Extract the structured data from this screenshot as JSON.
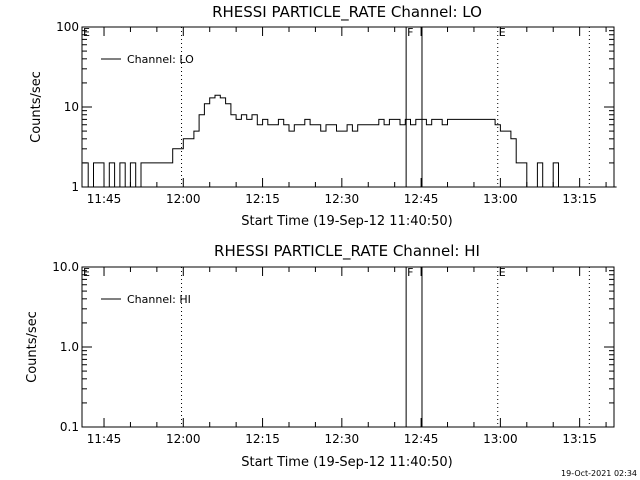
{
  "timestamp": "19-Oct-2021 02:34",
  "chart_data": [
    {
      "type": "line",
      "title": "RHESSI PARTICLE_RATE Channel: LO",
      "xlabel": "Start Time (19-Sep-12 11:40:50)",
      "ylabel": "Counts/sec",
      "yscale": "log",
      "xlim": [
        "11:40:50",
        "13:21:30"
      ],
      "ylim": [
        1,
        100
      ],
      "xticks": [
        "11:45",
        "12:00",
        "12:15",
        "12:30",
        "12:45",
        "13:00",
        "13:15"
      ],
      "yticks": [
        "1",
        "10",
        "100"
      ],
      "legend": {
        "label": "Channel: LO",
        "position": "top-left"
      },
      "markers": [
        {
          "label": "E",
          "time": "11:40:50",
          "style": "dotted"
        },
        {
          "label": "",
          "time": "11:59:40",
          "style": "dotted"
        },
        {
          "label": "F",
          "time": "12:42:10",
          "style": "solid"
        },
        {
          "label": "",
          "time": "12:45:10",
          "style": "solid"
        },
        {
          "label": "E",
          "time": "12:59:30",
          "style": "dotted"
        },
        {
          "label": "",
          "time": "13:16:50",
          "style": "dotted"
        }
      ],
      "series": [
        {
          "name": "Channel: LO",
          "x": [
            "11:41",
            "11:42",
            "11:43",
            "11:44",
            "11:45",
            "11:46",
            "11:47",
            "11:48",
            "11:49",
            "11:50",
            "11:51",
            "11:52",
            "11:53",
            "11:54",
            "11:55",
            "11:56",
            "11:57",
            "11:58",
            "11:59",
            "12:00",
            "12:01",
            "12:02",
            "12:03",
            "12:04",
            "12:05",
            "12:06",
            "12:07",
            "12:08",
            "12:09",
            "12:10",
            "12:11",
            "12:12",
            "12:13",
            "12:14",
            "12:15",
            "12:16",
            "12:17",
            "12:18",
            "12:19",
            "12:20",
            "12:21",
            "12:22",
            "12:23",
            "12:24",
            "12:25",
            "12:26",
            "12:27",
            "12:28",
            "12:29",
            "12:30",
            "12:31",
            "12:32",
            "12:33",
            "12:34",
            "12:35",
            "12:36",
            "12:37",
            "12:38",
            "12:39",
            "12:40",
            "12:41",
            "12:42",
            "12:43",
            "12:44",
            "12:45",
            "12:46",
            "12:47",
            "12:48",
            "12:49",
            "12:50",
            "12:51",
            "12:52",
            "12:53",
            "12:54",
            "12:55",
            "12:56",
            "12:57",
            "12:58",
            "12:59",
            "13:00",
            "13:01",
            "13:02",
            "13:03",
            "13:04",
            "13:05",
            "13:06",
            "13:07",
            "13:08",
            "13:09",
            "13:10",
            "13:11",
            "13:12",
            "13:13",
            "13:14",
            "13:15",
            "13:16",
            "13:17",
            "13:18",
            "13:19",
            "13:20",
            "13:21"
          ],
          "values": [
            2,
            1,
            2,
            2,
            1,
            2,
            1,
            2,
            1,
            2,
            1,
            2,
            2,
            2,
            2,
            2,
            2,
            3,
            3,
            4,
            4,
            5,
            8,
            11,
            13,
            14,
            13,
            11,
            8,
            7,
            8,
            7,
            8,
            6,
            7,
            6,
            6,
            7,
            6,
            5,
            6,
            6,
            7,
            6,
            6,
            5,
            6,
            6,
            5,
            5,
            6,
            5,
            6,
            6,
            6,
            6,
            7,
            6,
            7,
            7,
            6,
            7,
            6,
            7,
            7,
            6,
            7,
            7,
            6,
            7,
            7,
            7,
            7,
            7,
            7,
            7,
            7,
            7,
            6,
            5,
            5,
            4,
            2,
            2,
            1,
            1,
            2,
            1,
            1,
            2,
            1,
            1,
            1,
            1,
            1,
            1,
            1,
            1,
            1,
            1,
            1
          ]
        }
      ]
    },
    {
      "type": "line",
      "title": "RHESSI PARTICLE_RATE Channel: HI",
      "xlabel": "Start Time (19-Sep-12 11:40:50)",
      "ylabel": "Counts/sec",
      "yscale": "log",
      "xlim": [
        "11:40:50",
        "13:21:30"
      ],
      "ylim": [
        0.1,
        10
      ],
      "xticks": [
        "11:45",
        "12:00",
        "12:15",
        "12:30",
        "12:45",
        "13:00",
        "13:15"
      ],
      "yticks": [
        "0.1",
        "1.0",
        "10.0"
      ],
      "legend": {
        "label": "Channel: HI",
        "position": "top-left"
      },
      "markers": [
        {
          "label": "E",
          "time": "11:40:50",
          "style": "dotted"
        },
        {
          "label": "",
          "time": "11:59:40",
          "style": "dotted"
        },
        {
          "label": "F",
          "time": "12:42:10",
          "style": "solid"
        },
        {
          "label": "",
          "time": "12:45:10",
          "style": "solid"
        },
        {
          "label": "E",
          "time": "12:59:30",
          "style": "dotted"
        },
        {
          "label": "",
          "time": "13:16:50",
          "style": "dotted"
        }
      ],
      "series": [
        {
          "name": "Channel: HI",
          "x": [],
          "values": []
        }
      ]
    }
  ]
}
